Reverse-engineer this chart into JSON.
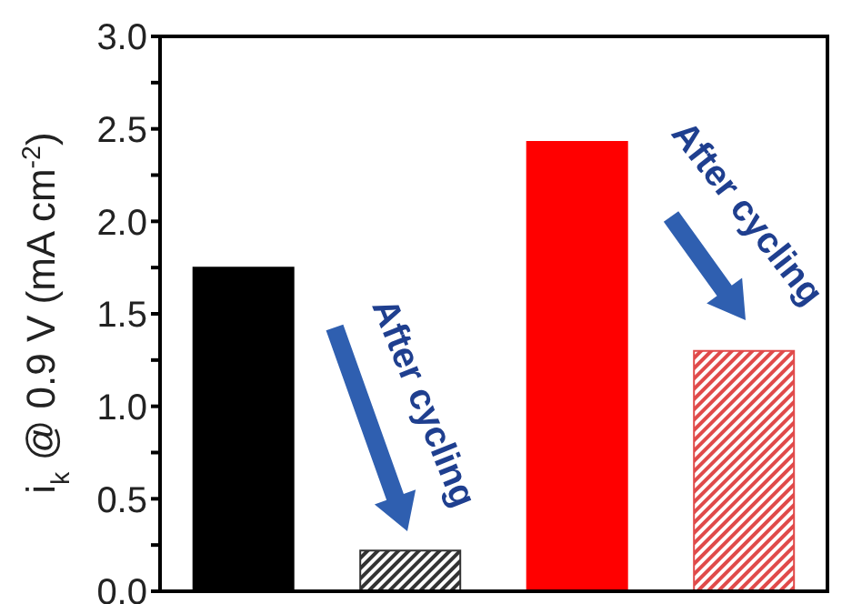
{
  "chart_data": {
    "type": "bar",
    "ylabel": "i$_{k}$ @ 0.9 V (mA cm$^{-2}$)",
    "categories": [
      null,
      null,
      null,
      null
    ],
    "values": [
      1.75,
      0.22,
      2.43,
      1.3
    ],
    "colors": [
      "#000000",
      "#333333",
      "#ff0000",
      "#e04a4a"
    ],
    "ylim": [
      0,
      3
    ],
    "yticks": [
      {
        "value": 0,
        "label": "0.0"
      },
      {
        "value": 0.25,
        "label": null
      },
      {
        "value": 0.5,
        "label": "0.5"
      },
      {
        "value": 0.75,
        "label": null
      },
      {
        "value": 1,
        "label": "1.0"
      },
      {
        "value": 1.25,
        "label": null
      },
      {
        "value": 1.5,
        "label": "1.5"
      },
      {
        "value": 1.75,
        "label": null
      },
      {
        "value": 2,
        "label": "2.0"
      },
      {
        "value": 2.25,
        "label": null
      },
      {
        "value": 2.5,
        "label": "2.5"
      },
      {
        "value": 2.75,
        "label": null
      },
      {
        "value": 3,
        "label": "3.0"
      }
    ],
    "annotations": [
      "After cycling",
      "After cycling"
    ],
    "grid": false,
    "legend": false
  }
}
